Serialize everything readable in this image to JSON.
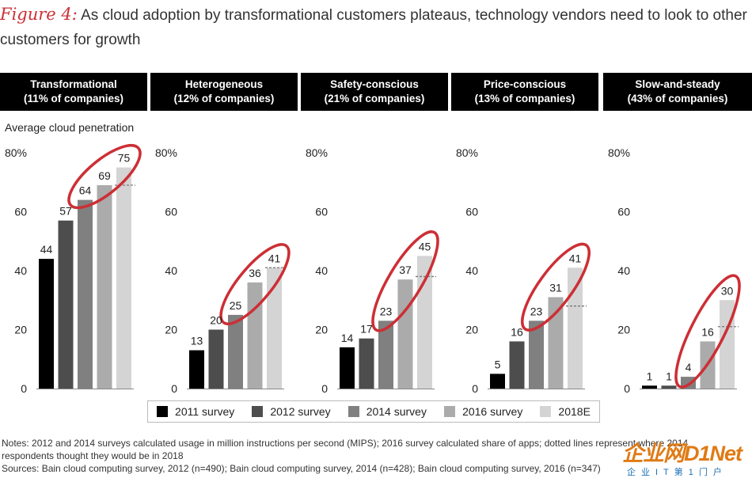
{
  "figure": {
    "label": "Figure 4:",
    "title": "As cloud adoption by transformational customers plateaus, technology vendors need to look to other customers for growth"
  },
  "chart_data": {
    "type": "bar",
    "ylabel": "Average cloud penetration",
    "ylim": [
      0,
      80
    ],
    "yticks": [
      "0",
      "20",
      "40",
      "60",
      "80%"
    ],
    "series_names": [
      "2011 survey",
      "2012 survey",
      "2014 survey",
      "2016 survey",
      "2018E"
    ],
    "colors": [
      "#000000",
      "#4d4d4d",
      "#808080",
      "#ababab",
      "#d4d4d4"
    ],
    "highlight_color": "#cc2f35",
    "panels": [
      {
        "name": "Transformational",
        "share": "(11% of companies)",
        "values": [
          44,
          57,
          64,
          69,
          75
        ],
        "expected_2018_from_2014": 69
      },
      {
        "name": "Heterogeneous",
        "share": "(12% of companies)",
        "values": [
          13,
          20,
          25,
          36,
          41
        ],
        "expected_2018_from_2014": 41
      },
      {
        "name": "Safety-conscious",
        "share": "(21% of companies)",
        "values": [
          14,
          17,
          23,
          37,
          45
        ],
        "expected_2018_from_2014": 38
      },
      {
        "name": "Price-conscious",
        "share": "(13% of companies)",
        "values": [
          5,
          16,
          23,
          31,
          41
        ],
        "expected_2018_from_2014": 28
      },
      {
        "name": "Slow-and-steady",
        "share": "(43% of companies)",
        "values": [
          1,
          1,
          4,
          16,
          30
        ],
        "expected_2018_from_2014": 21
      }
    ]
  },
  "notes": {
    "line1": "Notes: 2012 and 2014 surveys calculated usage in million instructions per second (MIPS); 2016 survey calculated share of apps; dotted lines represent where 2014",
    "line2": "respondents thought they would be in 2018",
    "line3": "Sources: Bain cloud computing survey, 2012 (n=490); Bain cloud computing survey, 2014 (n=428); Bain cloud computing survey, 2016 (n=347)"
  },
  "watermark": {
    "main": "企业网D1Net",
    "sub": "企业IT第1门户"
  }
}
